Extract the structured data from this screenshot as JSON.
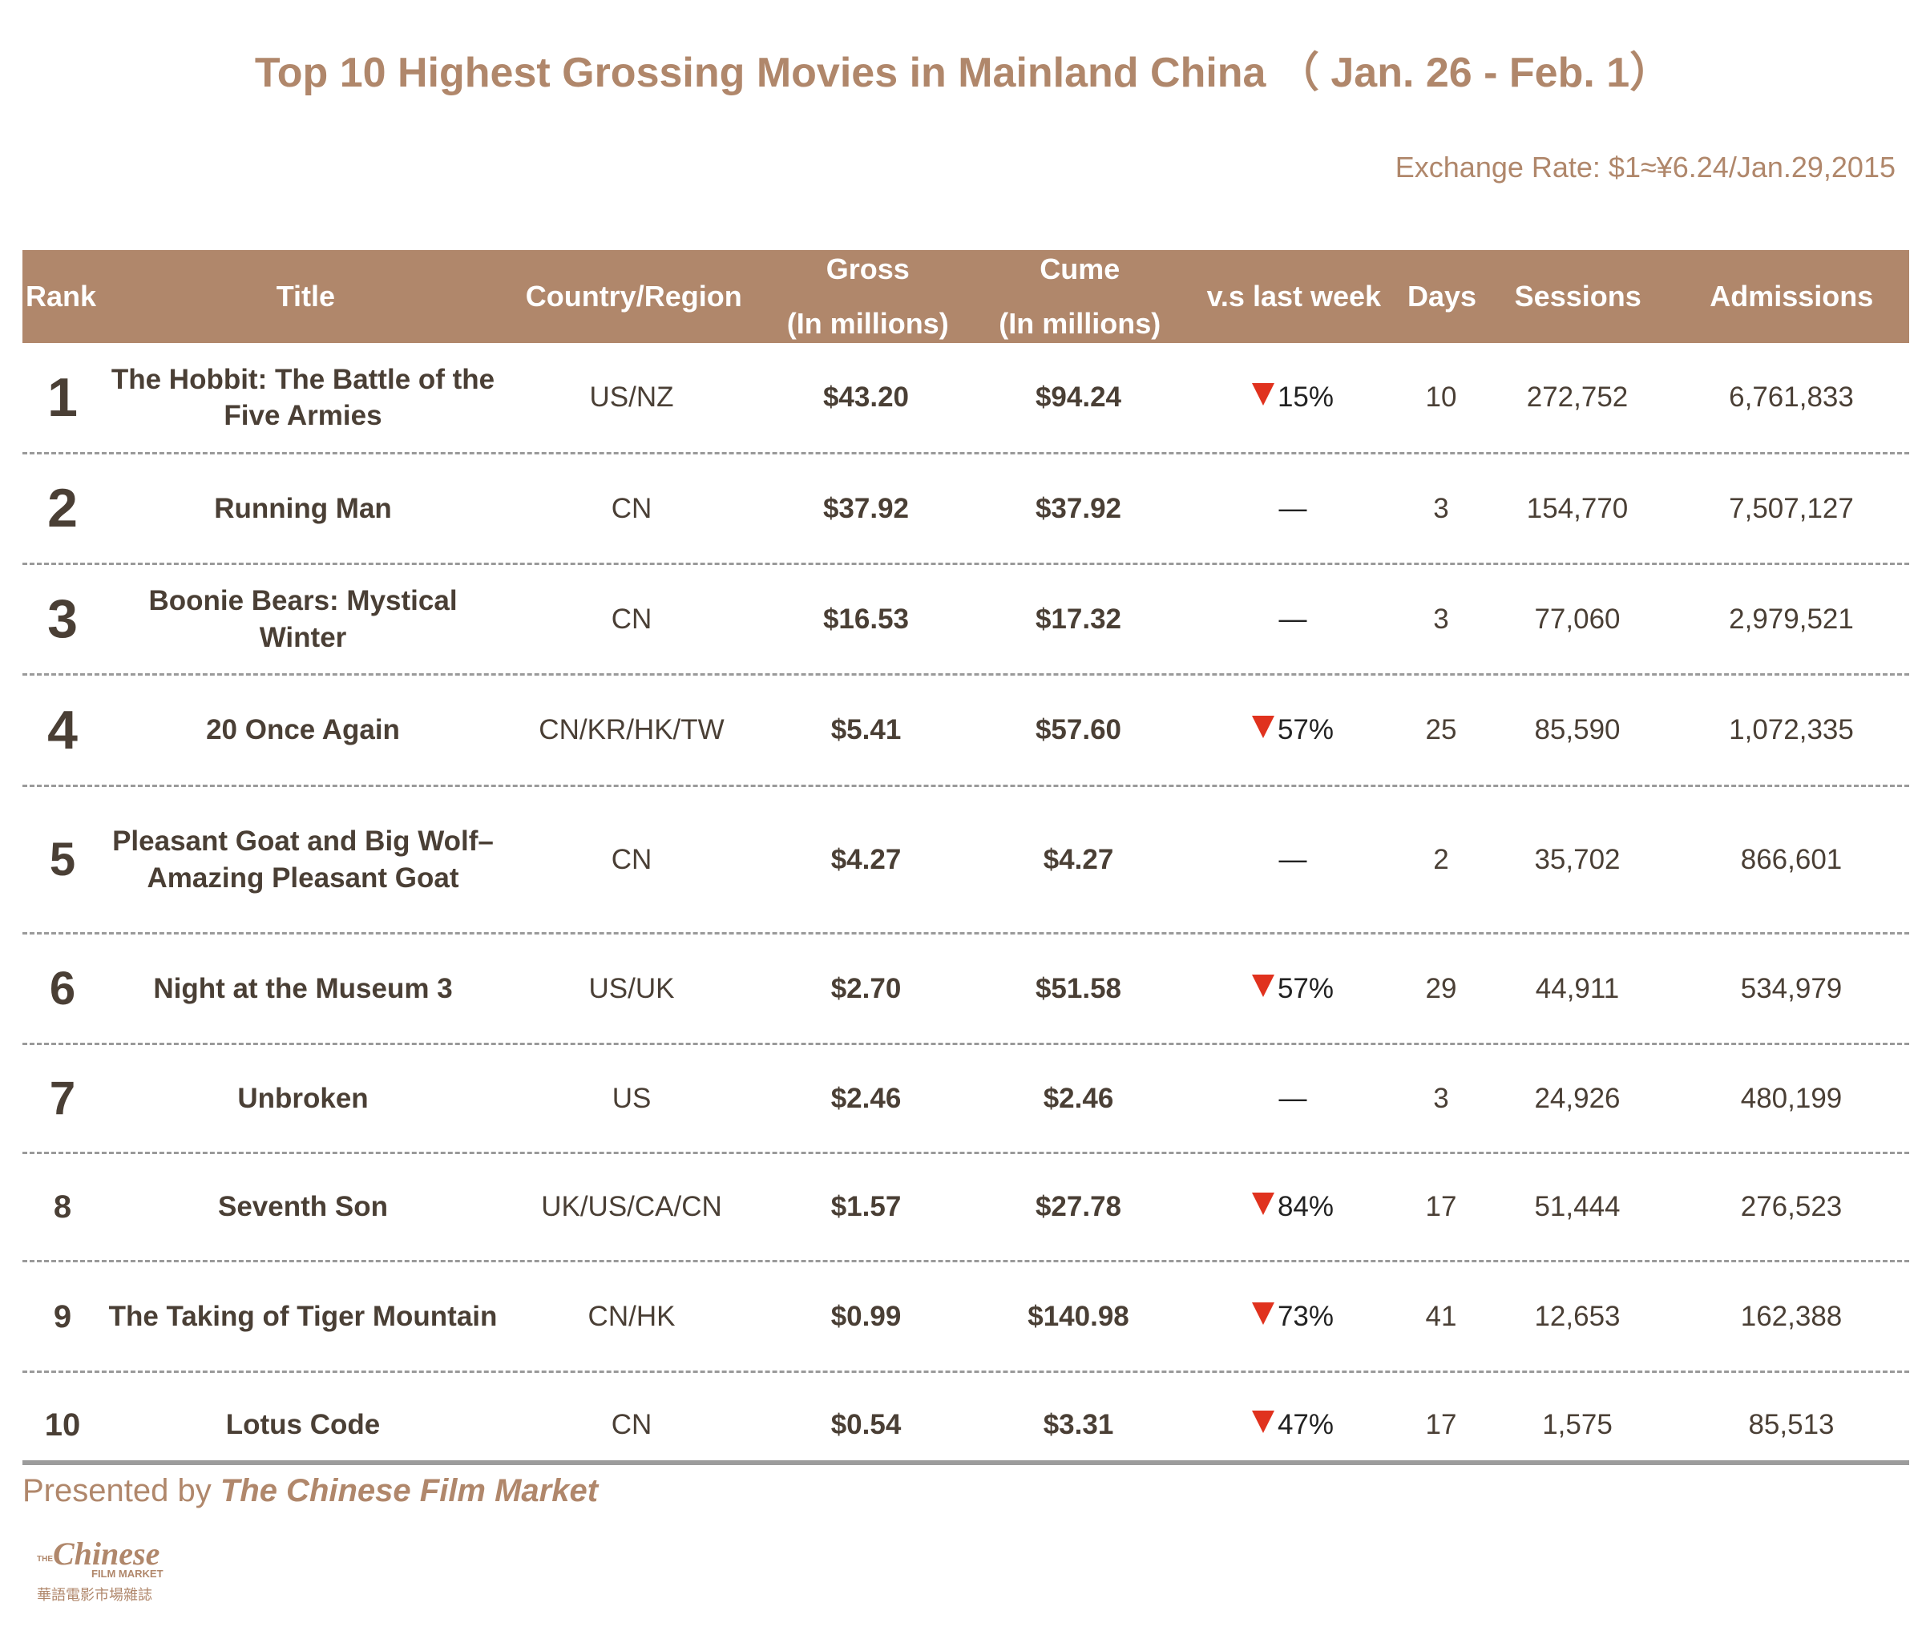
{
  "title": "Top 10 Highest Grossing Movies in Mainland China （ Jan. 26 - Feb. 1）",
  "exchange_rate": "Exchange Rate: $1≈¥6.24/Jan.29,2015",
  "headers": {
    "rank": "Rank",
    "title": "Title",
    "country": "Country/Region",
    "gross": "Gross",
    "gross_sub": "(In millions)",
    "cume": "Cume",
    "cume_sub": "(In millions)",
    "vs": "v.s last week",
    "days": "Days",
    "sessions": "Sessions",
    "admissions": "Admissions"
  },
  "chart_data": {
    "type": "table",
    "title": "Top 10 Highest Grossing Movies in Mainland China （ Jan. 26 - Feb. 1）",
    "columns": [
      "Rank",
      "Title",
      "Country/Region",
      "Gross (In millions)",
      "Cume (In millions)",
      "v.s last week",
      "Days",
      "Sessions",
      "Admissions"
    ],
    "rows": [
      {
        "rank": "1",
        "title": "The Hobbit: The Battle of the Five Armies",
        "country": "US/NZ",
        "gross": "$43.20",
        "cume": "$94.24",
        "vs": "15%",
        "down": true,
        "days": "10",
        "sessions": "272,752",
        "admissions": "6,761,833"
      },
      {
        "rank": "2",
        "title": "Running Man",
        "country": "CN",
        "gross": "$37.92",
        "cume": "$37.92",
        "vs": "—",
        "down": false,
        "days": "3",
        "sessions": "154,770",
        "admissions": "7,507,127"
      },
      {
        "rank": "3",
        "title": "Boonie Bears: Mystical Winter",
        "country": "CN",
        "gross": "$16.53",
        "cume": "$17.32",
        "vs": "—",
        "down": false,
        "days": "3",
        "sessions": "77,060",
        "admissions": "2,979,521"
      },
      {
        "rank": "4",
        "title": "20 Once Again",
        "country": "CN/KR/HK/TW",
        "gross": "$5.41",
        "cume": "$57.60",
        "vs": "57%",
        "down": true,
        "days": "25",
        "sessions": "85,590",
        "admissions": "1,072,335"
      },
      {
        "rank": "5",
        "title": "Pleasant Goat and Big Wolf– Amazing Pleasant Goat",
        "country": "CN",
        "gross": "$4.27",
        "cume": "$4.27",
        "vs": "—",
        "down": false,
        "days": "2",
        "sessions": "35,702",
        "admissions": "866,601"
      },
      {
        "rank": "6",
        "title": "Night at the Museum 3",
        "country": "US/UK",
        "gross": "$2.70",
        "cume": "$51.58",
        "vs": "57%",
        "down": true,
        "days": "29",
        "sessions": "44,911",
        "admissions": "534,979"
      },
      {
        "rank": "7",
        "title": "Unbroken",
        "country": "US",
        "gross": "$2.46",
        "cume": "$2.46",
        "vs": "—",
        "down": false,
        "days": "3",
        "sessions": "24,926",
        "admissions": "480,199"
      },
      {
        "rank": "8",
        "title": "Seventh Son",
        "country": "UK/US/CA/CN",
        "gross": "$1.57",
        "cume": "$27.78",
        "vs": "84%",
        "down": true,
        "days": "17",
        "sessions": "51,444",
        "admissions": "276,523"
      },
      {
        "rank": "9",
        "title": "The Taking of Tiger Mountain",
        "country": "CN/HK",
        "gross": "$0.99",
        "cume": "$140.98",
        "vs": "73%",
        "down": true,
        "days": "41",
        "sessions": "12,653",
        "admissions": "162,388"
      },
      {
        "rank": "10",
        "title": "Lotus Code",
        "country": "CN",
        "gross": "$0.54",
        "cume": "$3.31",
        "vs": "47%",
        "down": true,
        "days": "17",
        "sessions": "1,575",
        "admissions": "85,513"
      }
    ]
  },
  "footer": {
    "presented_prefix": "Presented by ",
    "presented_brand": "The Chinese Film Market",
    "logo_the": "THE",
    "logo_chinese": "Chinese",
    "logo_film_market": "FILM MARKET",
    "logo_cn": "華語電影市場雜誌"
  },
  "colors": {
    "accent": "#b0876b",
    "down_arrow": "#e0321e",
    "text": "#4a3f35"
  }
}
